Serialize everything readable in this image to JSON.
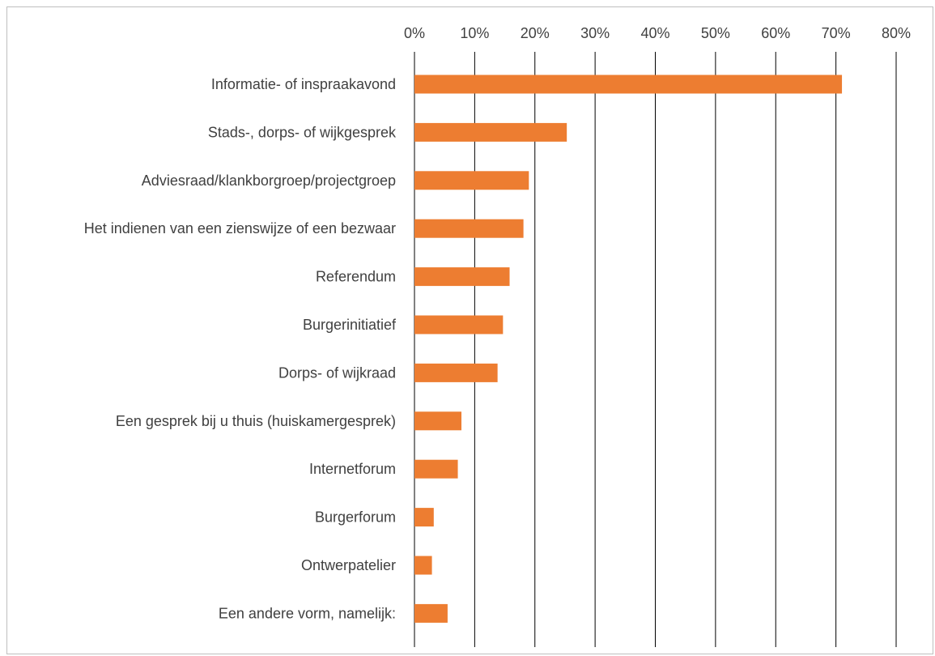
{
  "chart_data": {
    "type": "bar",
    "orientation": "horizontal",
    "title": "",
    "xlabel": "",
    "ylabel": "",
    "xlim": [
      0,
      80
    ],
    "x_ticks": [
      0,
      10,
      20,
      30,
      40,
      50,
      60,
      70,
      80
    ],
    "x_tick_labels": [
      "0%",
      "10%",
      "20%",
      "30%",
      "40%",
      "50%",
      "60%",
      "70%",
      "80%"
    ],
    "x_axis_position": "top",
    "grid": "vertical",
    "legend": "none",
    "bar_color": "#ED7D31",
    "categories": [
      "Informatie- of inspraakavond",
      "Stads-, dorps- of wijkgesprek",
      "Adviesraad/klankborgroep/projectgroep",
      "Het indienen van een zienswijze of een bezwaar",
      "Referendum",
      "Burgerinitiatief",
      "Dorps- of wijkraad",
      "Een gesprek bij u thuis (huiskamergesprek)",
      "Internetforum",
      "Burgerforum",
      "Ontwerpatelier",
      "Een andere vorm, namelijk:"
    ],
    "values": [
      71,
      25.3,
      19,
      18.1,
      15.8,
      14.7,
      13.8,
      7.8,
      7.2,
      3.2,
      2.9,
      5.5
    ]
  }
}
